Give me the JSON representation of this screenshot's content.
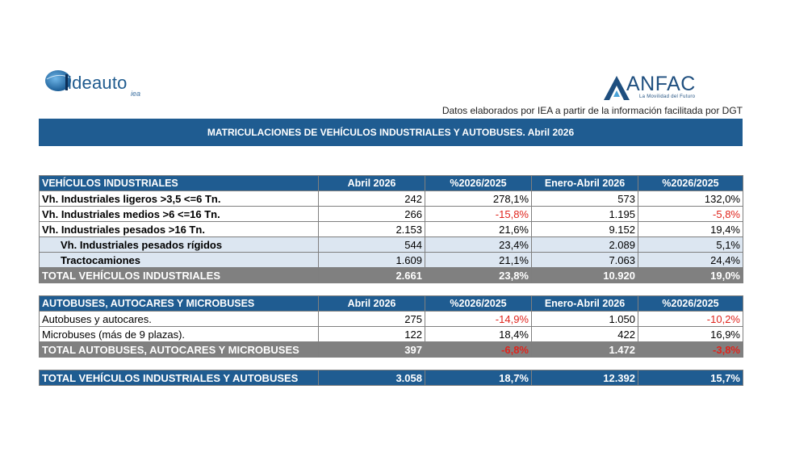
{
  "logos": {
    "ideauto": {
      "word": "ideauto",
      "sub": "iea"
    },
    "anfac": {
      "word": "ANFAC",
      "tagline": "La Movilidad del Futuro"
    }
  },
  "source_note": "Datos elaborados por IEA a partir de la información facilitada por DGT",
  "title": "MATRICULACIONES DE VEHÍCULOS INDUSTRIALES Y AUTOBUSES.  Abril 2026",
  "colors": {
    "header_blue": "#1f5c91",
    "total_gray": "#808080",
    "sub_row": "#dce6f1",
    "negative": "#e0241c"
  },
  "industriales": {
    "headers": [
      "VEHÍCULOS INDUSTRIALES",
      "Abril 2026",
      "%2026/2025",
      "Enero-Abril 2026",
      "%2026/2025"
    ],
    "rows": [
      [
        "Vh. Industriales ligeros >3,5 <=6 Tn.",
        "242",
        "278,1%",
        "573",
        "132,0%"
      ],
      [
        "Vh. Industriales medios >6  <=16 Tn.",
        "266",
        "-15,8%",
        "1.195",
        "-5,8%"
      ],
      [
        "Vh. Industriales  pesados >16 Tn.",
        "2.153",
        "21,6%",
        "9.152",
        "19,4%"
      ],
      [
        "Vh. Industriales pesados rígidos",
        "544",
        "23,4%",
        "2.089",
        "5,1%"
      ],
      [
        "Tractocamiones",
        "1.609",
        "21,1%",
        "7.063",
        "24,4%"
      ]
    ],
    "total": [
      "TOTAL VEHÍCULOS INDUSTRIALES",
      "2.661",
      "23,8%",
      "10.920",
      "19,0%"
    ]
  },
  "autobuses": {
    "headers": [
      "AUTOBUSES, AUTOCARES Y MICROBUSES",
      "Abril 2026",
      "%2026/2025",
      "Enero-Abril 2026",
      "%2026/2025"
    ],
    "rows": [
      [
        "Autobuses y autocares.",
        "275",
        "-14,9%",
        "1.050",
        "-10,2%"
      ],
      [
        "Microbuses (más de 9 plazas).",
        "122",
        "18,4%",
        "422",
        "16,9%"
      ]
    ],
    "total": [
      "TOTAL AUTOBUSES, AUTOCARES Y MICROBUSES",
      "397",
      "-6,8%",
      "1.472",
      "-3,8%"
    ]
  },
  "grand_total": [
    "TOTAL VEHÍCULOS INDUSTRIALES Y AUTOBUSES",
    "3.058",
    "18,7%",
    "12.392",
    "15,7%"
  ]
}
